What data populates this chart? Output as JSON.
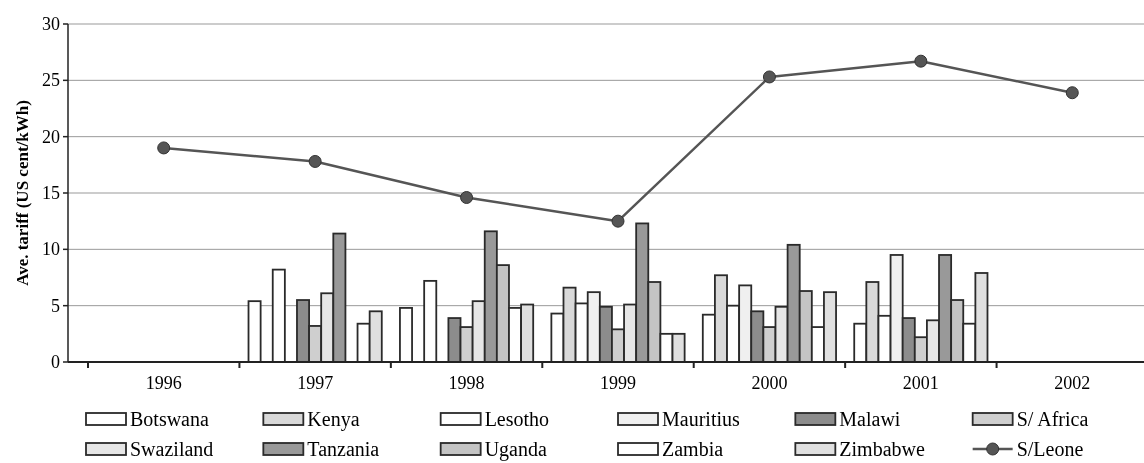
{
  "chart_data": {
    "type": "bar",
    "ylabel": "Ave. tariff (US cent/kWh)",
    "categories": [
      "1996",
      "1997",
      "1998",
      "1999",
      "2000",
      "2001",
      "2002"
    ],
    "ylim": [
      0,
      30
    ],
    "yticks": [
      0,
      5,
      10,
      15,
      20,
      25,
      30
    ],
    "grid": "y",
    "legend": "bottom",
    "series": [
      {
        "name": "Botswana",
        "color": "#ffffff",
        "values": [
          null,
          5.4,
          4.8,
          4.3,
          4.2,
          3.4,
          null
        ]
      },
      {
        "name": "Kenya",
        "color": "#d9d9d9",
        "values": [
          null,
          null,
          null,
          6.6,
          7.7,
          7.1,
          null
        ]
      },
      {
        "name": "Lesotho",
        "color": "#ffffff",
        "values": [
          null,
          8.2,
          7.2,
          5.2,
          5.0,
          4.1,
          null
        ]
      },
      {
        "name": "Mauritius",
        "color": "#f0f0f0",
        "values": [
          null,
          null,
          null,
          6.2,
          6.8,
          9.5,
          null
        ]
      },
      {
        "name": "Malawi",
        "color": "#8c8c8c",
        "values": [
          null,
          5.5,
          3.9,
          4.9,
          4.5,
          3.9,
          null
        ]
      },
      {
        "name": "S/ Africa",
        "color": "#cfcfcf",
        "values": [
          null,
          3.2,
          3.1,
          2.9,
          3.1,
          2.2,
          null
        ]
      },
      {
        "name": "Swaziland",
        "color": "#e6e6e6",
        "values": [
          null,
          6.1,
          5.4,
          5.1,
          4.9,
          3.7,
          null
        ]
      },
      {
        "name": "Tanzania",
        "color": "#999999",
        "values": [
          null,
          11.4,
          11.6,
          12.3,
          10.4,
          9.5,
          null
        ]
      },
      {
        "name": "Uganda",
        "color": "#c4c4c4",
        "values": [
          null,
          null,
          8.6,
          7.1,
          6.3,
          5.5,
          null
        ]
      },
      {
        "name": "Zambia",
        "color": "#ffffff",
        "values": [
          null,
          3.4,
          4.8,
          2.5,
          3.1,
          3.4,
          null
        ]
      },
      {
        "name": "Zimbabwe",
        "color": "#e0e0e0",
        "values": [
          null,
          4.5,
          5.1,
          2.5,
          6.2,
          7.9,
          null
        ]
      },
      {
        "name": "S/Leone",
        "type": "line",
        "color": "#555555",
        "marker": "circle",
        "values": [
          19.0,
          17.8,
          14.6,
          12.5,
          25.3,
          26.7,
          23.9
        ]
      }
    ]
  }
}
